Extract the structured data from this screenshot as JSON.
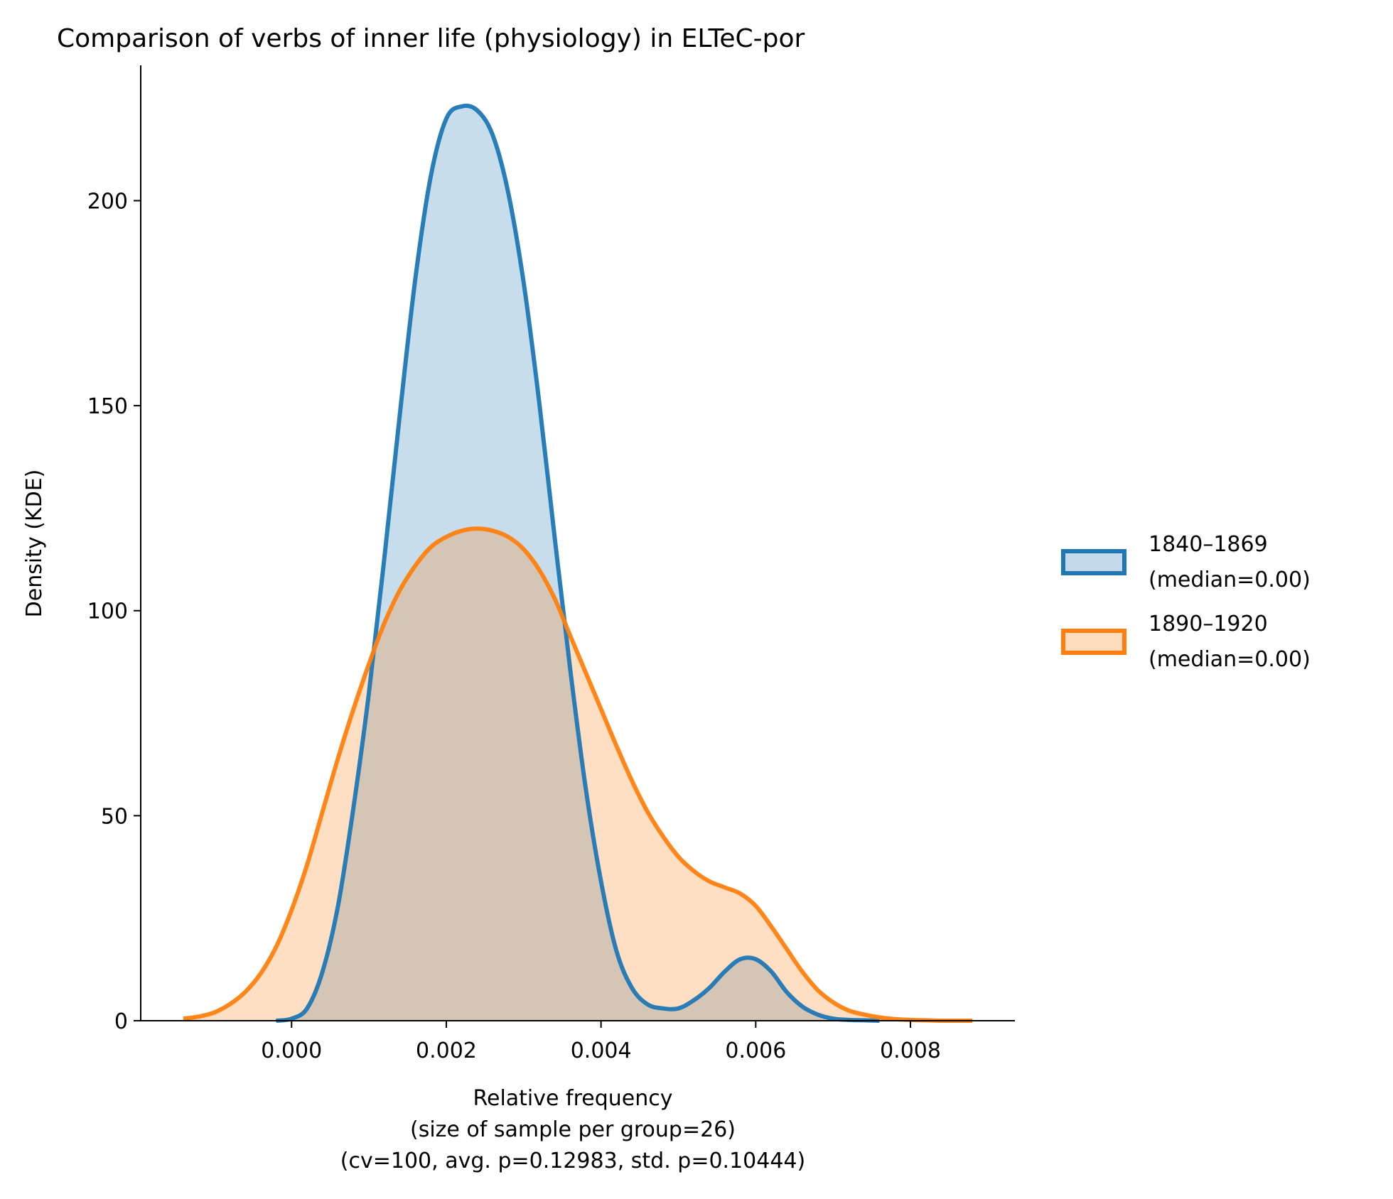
{
  "chart_data": {
    "type": "area",
    "title": "Comparison of verbs of inner life (physiology) in ELTeC-por",
    "xlabel_lines": [
      "Relative frequency",
      "(size of sample per group=26)",
      "(cv=100, avg. p=0.12983, std. p=0.10444)"
    ],
    "ylabel": "Density (KDE)",
    "xlim": [
      -0.00195,
      0.00935
    ],
    "ylim": [
      0,
      233
    ],
    "xticks": [
      0.0,
      0.002,
      0.004,
      0.006,
      0.008
    ],
    "xtick_labels": [
      "0.000",
      "0.002",
      "0.004",
      "0.006",
      "0.008"
    ],
    "yticks": [
      0,
      50,
      100,
      150,
      200
    ],
    "ytick_labels": [
      "0",
      "50",
      "100",
      "150",
      "200"
    ],
    "grid": false,
    "legend_position": "right, outside plot",
    "series": [
      {
        "name": "1840–1869\n(median=0.00)",
        "legend_lines": [
          "1840–1869",
          "(median=0.00)"
        ],
        "color": "#1f77b4",
        "fill": "#c4daec",
        "x": [
          -0.0002,
          0.0,
          0.0002,
          0.0004,
          0.0006,
          0.0008,
          0.001,
          0.0012,
          0.0014,
          0.0016,
          0.0018,
          0.002,
          0.0022,
          0.0024,
          0.0026,
          0.0028,
          0.003,
          0.0032,
          0.0034,
          0.0036,
          0.0038,
          0.004,
          0.0042,
          0.0044,
          0.0046,
          0.0048,
          0.005,
          0.0052,
          0.0054,
          0.0056,
          0.0058,
          0.006,
          0.0062,
          0.0064,
          0.0066,
          0.0068,
          0.007,
          0.0072,
          0.0074,
          0.0076
        ],
        "y": [
          0,
          0.5,
          3,
          12,
          28,
          52,
          80,
          113,
          148,
          181,
          206,
          220,
          223,
          222,
          216,
          202,
          180,
          151,
          118,
          86,
          57,
          34,
          17,
          8,
          4,
          3,
          3,
          5,
          8,
          12,
          15,
          15,
          12,
          7,
          3.5,
          1.5,
          0.5,
          0.2,
          0.1,
          0
        ]
      },
      {
        "name": "1890–1920\n(median=0.00)",
        "legend_lines": [
          "1890–1920",
          "(median=0.00)"
        ],
        "color": "#ff7f0e",
        "fill": "#ffdcbd",
        "x": [
          -0.0014,
          -0.0012,
          -0.001,
          -0.0008,
          -0.0006,
          -0.0004,
          -0.0002,
          0.0,
          0.0002,
          0.0004,
          0.0006,
          0.0008,
          0.001,
          0.0012,
          0.0014,
          0.0016,
          0.0018,
          0.002,
          0.0022,
          0.0024,
          0.0026,
          0.0028,
          0.003,
          0.0032,
          0.0034,
          0.0036,
          0.0038,
          0.004,
          0.0042,
          0.0044,
          0.0046,
          0.0048,
          0.005,
          0.0052,
          0.0054,
          0.0056,
          0.0058,
          0.006,
          0.0062,
          0.0064,
          0.0066,
          0.0068,
          0.007,
          0.0072,
          0.0074,
          0.0076,
          0.0078,
          0.008,
          0.0082,
          0.0084,
          0.0086,
          0.0088
        ],
        "y": [
          0.5,
          1,
          2,
          4,
          7,
          11.5,
          18,
          27,
          38,
          51,
          64,
          76,
          87,
          97,
          105,
          111,
          115.5,
          118,
          119.5,
          120,
          119.5,
          118,
          115,
          110,
          103,
          94,
          85,
          76,
          67,
          58.5,
          51,
          45,
          40,
          36.5,
          34,
          32.5,
          31,
          28,
          23,
          17.5,
          12,
          7.5,
          4.5,
          2.5,
          1.5,
          0.8,
          0.4,
          0.2,
          0.1,
          0,
          0,
          0
        ]
      }
    ]
  }
}
